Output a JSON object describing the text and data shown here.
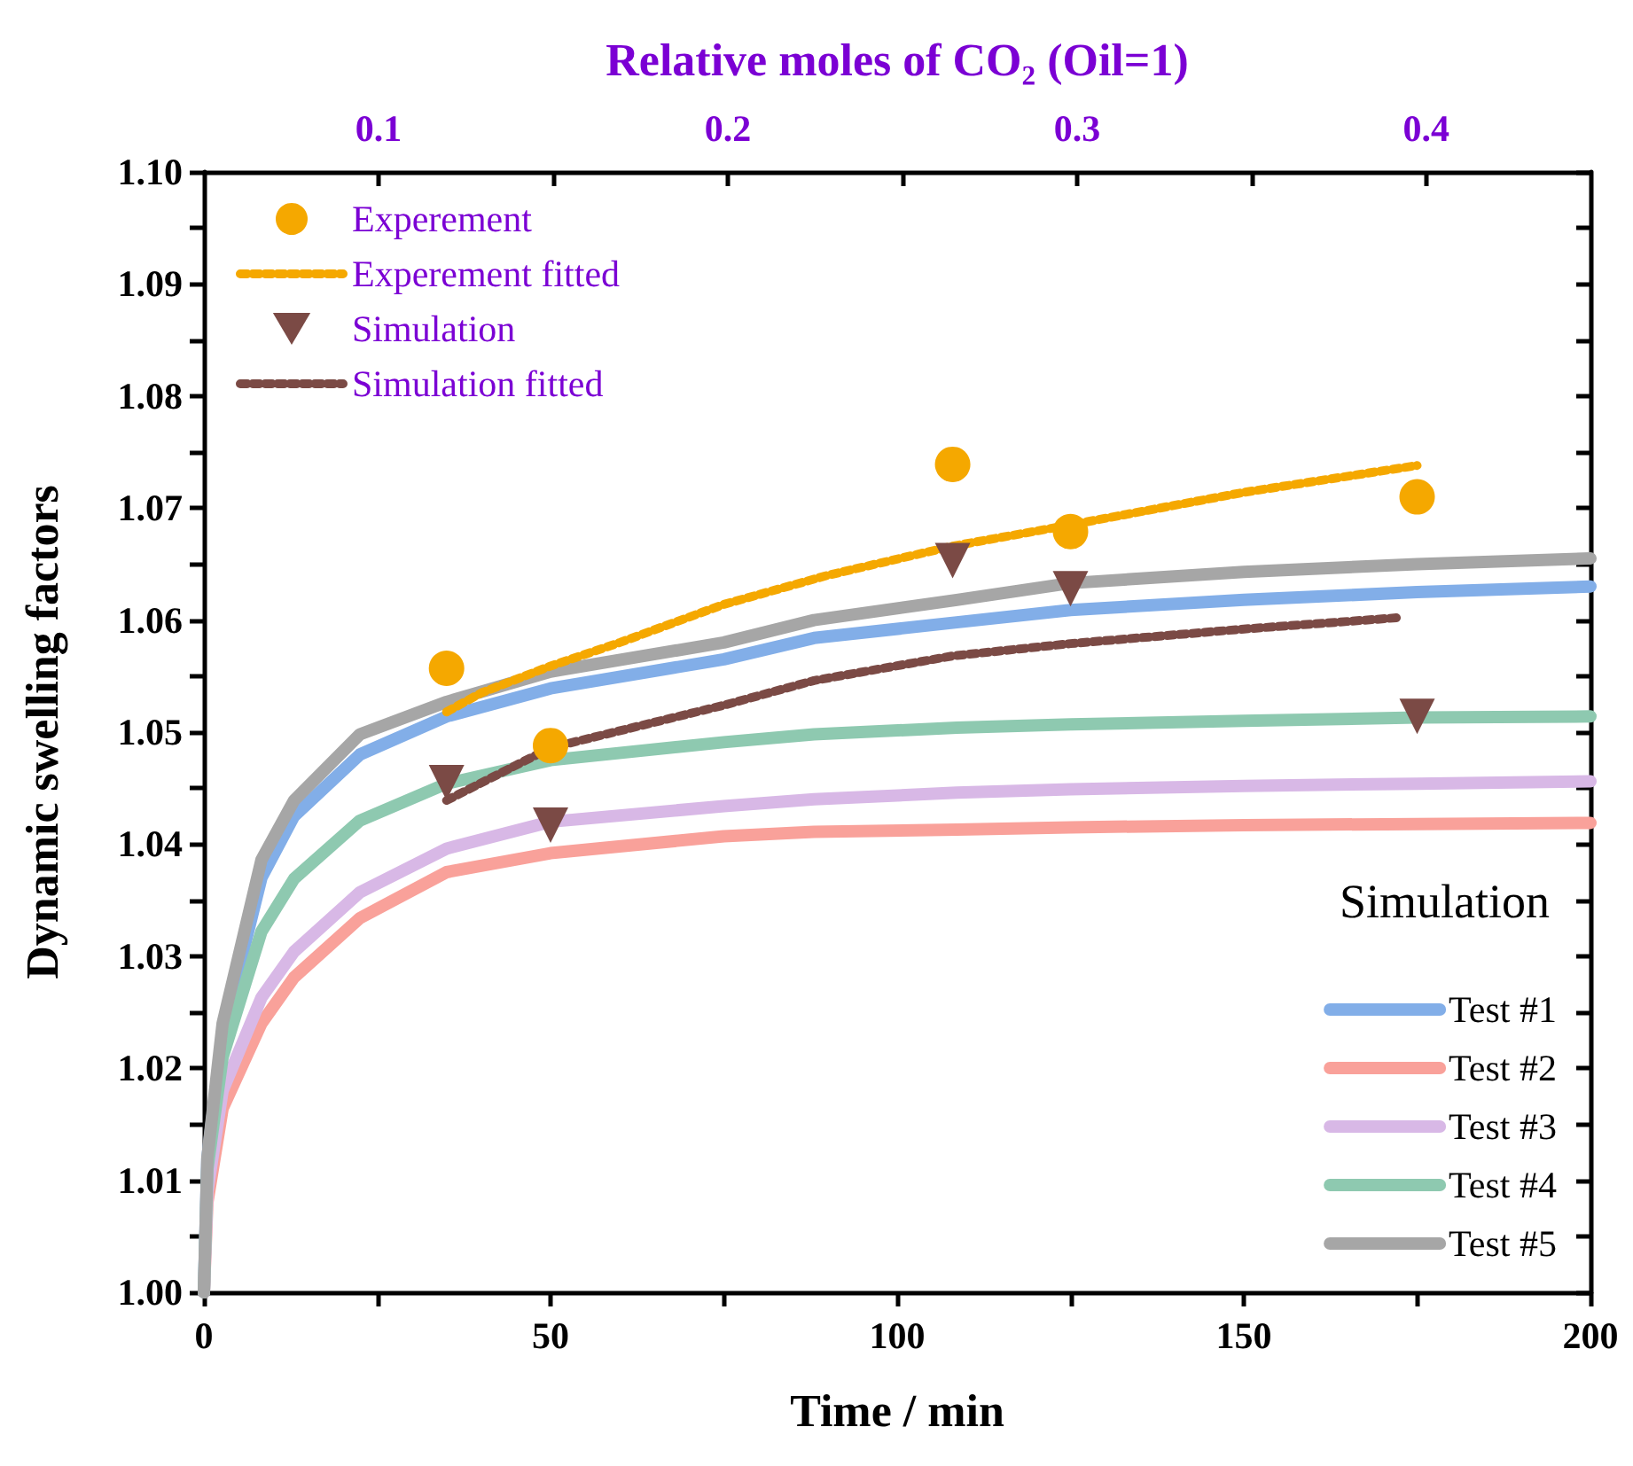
{
  "chart_data": {
    "type": "line",
    "xlabel": "Time / min",
    "ylabel": "Dynamic swelling factors",
    "x2label": "Relative moles of CO₂ (Oil=1)",
    "legend_title": "Simulation",
    "legend": "top left",
    "grid": false,
    "marker": "none",
    "line_style": "solid",
    "xlim": [
      0,
      200
    ],
    "xticks": [
      0,
      {
        "value": 25,
        "label": null
      },
      50,
      {
        "value": 75,
        "label": null
      },
      100,
      {
        "value": 125,
        "label": null
      },
      150,
      {
        "value": 175,
        "label": null
      },
      200
    ],
    "x2lim": [
      0.05,
      0.447
    ],
    "x2ticks": [
      0.1,
      {
        "value": 0.15,
        "label": null
      },
      0.2,
      {
        "value": 0.25,
        "label": null
      },
      0.3,
      {
        "value": 0.35,
        "label": null
      },
      0.4
    ],
    "ylim": [
      1,
      1.1
    ],
    "yticks": [
      {
        "value": 1,
        "label": "1.00"
      },
      {
        "value": 1.005,
        "label": null
      },
      1.01,
      {
        "value": 1.015,
        "label": null
      },
      1.02,
      {
        "value": 1.025,
        "label": null
      },
      1.03,
      {
        "value": 1.035,
        "label": null
      },
      1.04,
      {
        "value": 1.045,
        "label": null
      },
      1.05,
      {
        "value": 1.055,
        "label": null
      },
      1.06,
      {
        "value": 1.065,
        "label": null
      },
      1.07,
      {
        "value": 1.075,
        "label": null
      },
      1.08,
      {
        "value": 1.085,
        "label": null
      },
      1.09,
      {
        "value": 1.095,
        "label": null
      },
      {
        "value": 1.1,
        "label": "1.10"
      }
    ],
    "series": [
      {
        "name": "Test #1",
        "color": "#82aee8",
        "x": [
          0,
          0.5,
          2.7,
          8.3,
          13,
          22.5,
          35,
          50,
          75,
          88,
          108.6,
          125,
          150,
          175,
          200
        ],
        "values": [
          1,
          1.012,
          1.023,
          1.037,
          1.0425,
          1.048,
          1.0514,
          1.0539,
          1.0565,
          1.0584,
          1.0598,
          1.0609,
          1.0618,
          1.0625,
          1.063
        ]
      },
      {
        "name": "Test #2",
        "color": "#f9a19a",
        "x": [
          0,
          0.5,
          2.7,
          8.3,
          13,
          22.5,
          35,
          50,
          75,
          88,
          108.6,
          125,
          150,
          175,
          200
        ],
        "values": [
          1,
          1.008,
          1.0164,
          1.024,
          1.0281,
          1.0334,
          1.0375,
          1.0392,
          1.0407,
          1.0411,
          1.0413,
          1.0415,
          1.0417,
          1.0418,
          1.0419
        ]
      },
      {
        "name": "Test #3",
        "color": "#d8b8e6",
        "x": [
          0,
          0.5,
          2.7,
          8.3,
          13,
          22.5,
          35,
          50,
          75,
          88,
          108.6,
          125,
          150,
          175,
          200
        ],
        "values": [
          1,
          1.009,
          1.018,
          1.0263,
          1.0304,
          1.0357,
          1.0396,
          1.042,
          1.0434,
          1.044,
          1.0446,
          1.0449,
          1.0452,
          1.0454,
          1.0456
        ]
      },
      {
        "name": "Test #4",
        "color": "#8ec9b0",
        "x": [
          0,
          0.5,
          2.7,
          8.3,
          13,
          22.5,
          35,
          50,
          75,
          88,
          108.6,
          125,
          150,
          175,
          200
        ],
        "values": [
          1,
          1.011,
          1.021,
          1.0322,
          1.0369,
          1.0421,
          1.0454,
          1.0475,
          1.0491,
          1.0498,
          1.0504,
          1.0507,
          1.051,
          1.0513,
          1.0514
        ]
      },
      {
        "name": "Test #5",
        "color": "#a6a6a6",
        "x": [
          0,
          0.5,
          2.7,
          8.3,
          13,
          22.5,
          35,
          50,
          75,
          88,
          108.6,
          125,
          150,
          175,
          200
        ],
        "values": [
          1,
          1.012,
          1.024,
          1.0386,
          1.0439,
          1.0498,
          1.0527,
          1.0554,
          1.058,
          1.06,
          1.0618,
          1.0633,
          1.0643,
          1.065,
          1.0655
        ]
      },
      {
        "name": "Experement fitted",
        "color": "#f5a800",
        "line_style": "dashed",
        "x": [
          35,
          40,
          50,
          60,
          75,
          90,
          108,
          125,
          150,
          175
        ],
        "values": [
          1.0518,
          1.0535,
          1.0559,
          1.058,
          1.0614,
          1.064,
          1.0666,
          1.0685,
          1.0714,
          1.0738
        ]
      },
      {
        "name": "Simulation fitted",
        "color": "#7b4a45",
        "line_style": "dashed",
        "x": [
          35,
          50,
          75,
          88,
          108,
          125,
          150,
          172
        ],
        "values": [
          1.0439,
          1.0486,
          1.0524,
          1.0546,
          1.0568,
          1.0579,
          1.0592,
          1.0602
        ]
      },
      {
        "name": "Experement",
        "type": "scatter",
        "marker": "circle",
        "color": "#f5a800",
        "x": [
          35,
          50,
          108,
          125,
          175
        ],
        "values": [
          1.0557,
          1.0488,
          1.0739,
          1.0679,
          1.071
        ]
      },
      {
        "name": "Simulation",
        "type": "scatter",
        "marker": "triangle",
        "color": "#7b4a45",
        "x": [
          35,
          50,
          108,
          125,
          175
        ],
        "values": [
          1.0455,
          1.0417,
          1.0653,
          1.0628,
          1.0514
        ]
      }
    ]
  }
}
